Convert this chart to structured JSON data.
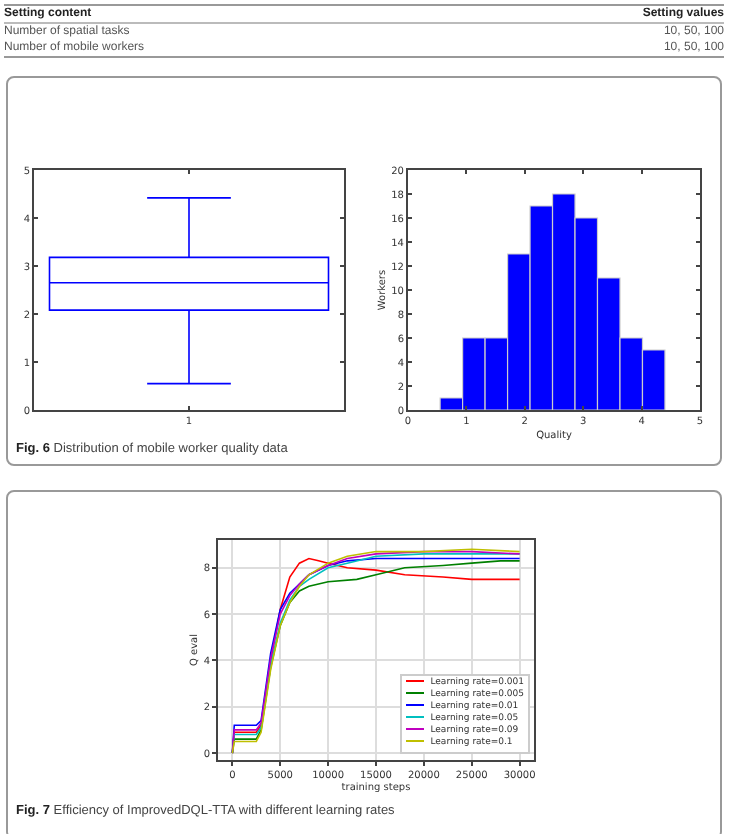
{
  "chart_data": [
    {
      "type": "other",
      "annotations": [
        "Setting content",
        "Setting values",
        "Number of spatial tasks",
        "10, 50, 100",
        "Number of mobile workers",
        "10, 50, 100"
      ]
    },
    {
      "type": "box",
      "categories": [
        "1"
      ],
      "boxes": [
        {
          "low": 0.55,
          "q1": 2.08,
          "median": 2.65,
          "q3": 3.18,
          "high": 4.42
        }
      ],
      "color": "#0000ff",
      "ylim": [
        0,
        5
      ],
      "yticks": [
        0,
        1,
        2,
        3,
        4,
        5
      ],
      "grid": false,
      "annotations": [
        "Fig. 6 Distribution of mobile worker quality data"
      ]
    },
    {
      "type": "histogram",
      "bins": [
        0.55,
        0.935,
        1.32,
        1.705,
        2.09,
        2.475,
        2.86,
        3.245,
        3.63,
        4.015,
        4.4
      ],
      "values": [
        1,
        6,
        6,
        13,
        17,
        18,
        16,
        11,
        6,
        5
      ],
      "color": "#0000ff",
      "xlim": [
        0,
        5
      ],
      "xticks": [
        0,
        1,
        2,
        3,
        4,
        5
      ],
      "ylim": [
        0,
        20
      ],
      "yticks": [
        0,
        2,
        4,
        6,
        8,
        10,
        12,
        14,
        16,
        18,
        20
      ],
      "xlabel": "Quality",
      "ylabel": "Workers",
      "grid": false
    },
    {
      "type": "line",
      "xlabel": "training steps",
      "ylabel": "Q eval",
      "xlim": [
        -1500,
        31500
      ],
      "xticks": [
        0,
        5000,
        10000,
        15000,
        20000,
        25000,
        30000
      ],
      "ylim": [
        -0.3,
        9.2
      ],
      "yticks": [
        0,
        2,
        4,
        6,
        8
      ],
      "grid": true,
      "legend": "bottom right",
      "annotations": [
        "Fig. 7 Efficiency of ImprovedDQL-TTA with different learning rates"
      ],
      "series": [
        {
          "name": "Learning rate=0.001",
          "color": "#ff0000",
          "x": [
            0,
            200,
            2500,
            3000,
            4000,
            5000,
            6000,
            7000,
            8000,
            9000,
            10000,
            12000,
            15000,
            18000,
            22000,
            25000,
            28000,
            30000
          ],
          "values": [
            0,
            0.9,
            0.9,
            1.2,
            4,
            6.2,
            7.6,
            8.2,
            8.4,
            8.3,
            8.2,
            8.0,
            7.9,
            7.7,
            7.6,
            7.5,
            7.5,
            7.5
          ]
        },
        {
          "name": "Learning rate=0.005",
          "color": "#008000",
          "x": [
            0,
            200,
            2500,
            3000,
            4000,
            5000,
            6000,
            7000,
            8000,
            10000,
            13000,
            15000,
            18000,
            22000,
            25000,
            28000,
            30000
          ],
          "values": [
            0,
            0.6,
            0.6,
            1.0,
            3.7,
            5.5,
            6.5,
            7.0,
            7.2,
            7.4,
            7.5,
            7.7,
            8.0,
            8.1,
            8.2,
            8.3,
            8.3
          ]
        },
        {
          "name": "Learning rate=0.01",
          "color": "#0000ff",
          "x": [
            0,
            200,
            2500,
            3000,
            4000,
            5000,
            6000,
            7000,
            8000,
            10000,
            12000,
            15000,
            20000,
            25000,
            30000
          ],
          "values": [
            0,
            1.2,
            1.2,
            1.4,
            4.3,
            6.2,
            6.9,
            7.3,
            7.7,
            8.1,
            8.3,
            8.4,
            8.4,
            8.4,
            8.4
          ]
        },
        {
          "name": "Learning rate=0.05",
          "color": "#00bfbf",
          "x": [
            0,
            200,
            2500,
            3000,
            4000,
            5000,
            6000,
            7000,
            8000,
            10000,
            12000,
            15000,
            20000,
            25000,
            30000
          ],
          "values": [
            0,
            0.8,
            0.8,
            1.1,
            3.8,
            5.6,
            6.6,
            7.2,
            7.5,
            8.0,
            8.2,
            8.5,
            8.6,
            8.6,
            8.6
          ]
        },
        {
          "name": "Learning rate=0.09",
          "color": "#bf00bf",
          "x": [
            0,
            200,
            2500,
            3000,
            4000,
            5000,
            6000,
            7000,
            8000,
            10000,
            12000,
            15000,
            20000,
            25000,
            30000
          ],
          "values": [
            0,
            1.0,
            1.0,
            1.3,
            4.1,
            6.0,
            6.8,
            7.3,
            7.7,
            8.1,
            8.4,
            8.6,
            8.7,
            8.7,
            8.6
          ]
        },
        {
          "name": "Learning rate=0.1",
          "color": "#bfbf00",
          "x": [
            0,
            200,
            2500,
            3000,
            4000,
            5000,
            6000,
            7000,
            8000,
            10000,
            12000,
            15000,
            20000,
            25000,
            30000
          ],
          "values": [
            0,
            0.5,
            0.5,
            0.9,
            3.6,
            5.5,
            6.5,
            7.2,
            7.7,
            8.2,
            8.5,
            8.7,
            8.7,
            8.8,
            8.7
          ]
        }
      ]
    }
  ]
}
